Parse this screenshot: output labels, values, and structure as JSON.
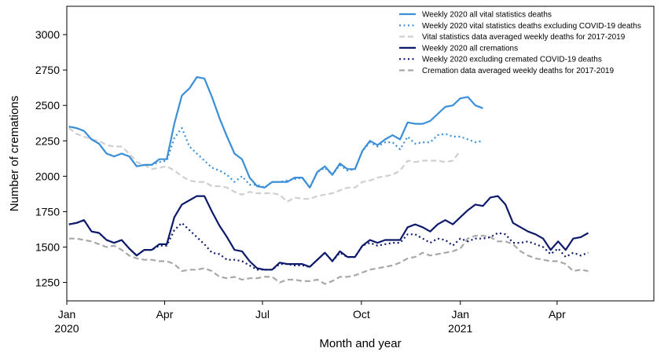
{
  "chart_data": {
    "type": "line",
    "title": "",
    "xlabel": "Month and year",
    "ylabel": "Number of cremations",
    "x_type": "date",
    "xlim": [
      "2020-01-01",
      "2021-06-30"
    ],
    "ylim": [
      1120,
      3200
    ],
    "grid": false,
    "legend_position": "top-right",
    "x_ticks": [
      {
        "date": "2020-01-01",
        "label": "Jan",
        "year": "2020"
      },
      {
        "date": "2020-04-01",
        "label": "Apr",
        "year": ""
      },
      {
        "date": "2020-07-01",
        "label": "Jul",
        "year": ""
      },
      {
        "date": "2020-10-01",
        "label": "Oct",
        "year": ""
      },
      {
        "date": "2021-01-01",
        "label": "Jan",
        "year": "2021"
      },
      {
        "date": "2021-04-01",
        "label": "Apr",
        "year": ""
      }
    ],
    "y_ticks": [
      1250,
      1500,
      1750,
      2000,
      2250,
      2500,
      2750,
      3000
    ],
    "series": [
      {
        "name": "Weekly 2020 all vital statistics deaths",
        "color": "#3a8fd8",
        "style": "solid",
        "x": [
          "2020-01-03",
          "2020-01-10",
          "2020-01-17",
          "2020-01-24",
          "2020-01-31",
          "2020-02-07",
          "2020-02-14",
          "2020-02-21",
          "2020-02-28",
          "2020-03-06",
          "2020-03-13",
          "2020-03-20",
          "2020-03-27",
          "2020-04-03",
          "2020-04-10",
          "2020-04-17",
          "2020-04-24",
          "2020-05-01",
          "2020-05-08",
          "2020-05-15",
          "2020-05-22",
          "2020-05-29",
          "2020-06-05",
          "2020-06-12",
          "2020-06-19",
          "2020-06-26",
          "2020-07-03",
          "2020-07-10",
          "2020-07-17",
          "2020-07-24",
          "2020-07-31",
          "2020-08-07",
          "2020-08-14",
          "2020-08-21",
          "2020-08-28",
          "2020-09-04",
          "2020-09-11",
          "2020-09-18",
          "2020-09-25",
          "2020-10-02",
          "2020-10-09",
          "2020-10-16",
          "2020-10-23",
          "2020-10-30",
          "2020-11-06",
          "2020-11-13",
          "2020-11-20",
          "2020-11-27",
          "2020-12-04",
          "2020-12-11",
          "2020-12-18",
          "2020-12-25",
          "2021-01-01",
          "2021-01-08",
          "2021-01-15",
          "2021-01-22",
          "2021-01-29"
        ],
        "y": [
          2350,
          2340,
          2320,
          2260,
          2230,
          2160,
          2140,
          2160,
          2140,
          2070,
          2080,
          2080,
          2120,
          2120,
          2370,
          2570,
          2620,
          2700,
          2690,
          2560,
          2410,
          2280,
          2160,
          2120,
          1990,
          1930,
          1920,
          1960,
          1960,
          1960,
          1990,
          1990,
          1920,
          2030,
          2070,
          2010,
          2090,
          2050,
          2050,
          2180,
          2250,
          2220,
          2260,
          2290,
          2260,
          2380,
          2370,
          2370,
          2390,
          2440,
          2490,
          2500,
          2550,
          2560,
          2500,
          2480,
          null
        ]
      },
      {
        "name": "Weekly 2020 vital statistics deaths excluding COVID-19 deaths",
        "color": "#3a8fd8",
        "style": "dotted",
        "x": [
          "2020-01-03",
          "2020-01-10",
          "2020-01-17",
          "2020-01-24",
          "2020-01-31",
          "2020-02-07",
          "2020-02-14",
          "2020-02-21",
          "2020-02-28",
          "2020-03-06",
          "2020-03-13",
          "2020-03-20",
          "2020-03-27",
          "2020-04-03",
          "2020-04-10",
          "2020-04-17",
          "2020-04-24",
          "2020-05-01",
          "2020-05-08",
          "2020-05-15",
          "2020-05-22",
          "2020-05-29",
          "2020-06-05",
          "2020-06-12",
          "2020-06-19",
          "2020-06-26",
          "2020-07-03",
          "2020-07-10",
          "2020-07-17",
          "2020-07-24",
          "2020-07-31",
          "2020-08-07",
          "2020-08-14",
          "2020-08-21",
          "2020-08-28",
          "2020-09-04",
          "2020-09-11",
          "2020-09-18",
          "2020-09-25",
          "2020-10-02",
          "2020-10-09",
          "2020-10-16",
          "2020-10-23",
          "2020-10-30",
          "2020-11-06",
          "2020-11-13",
          "2020-11-20",
          "2020-11-27",
          "2020-12-04",
          "2020-12-11",
          "2020-12-18",
          "2020-12-25",
          "2021-01-01",
          "2021-01-08",
          "2021-01-15",
          "2021-01-22",
          "2021-01-29"
        ],
        "y": [
          2350,
          2340,
          2320,
          2260,
          2230,
          2160,
          2140,
          2160,
          2140,
          2070,
          2080,
          2080,
          2100,
          2110,
          2270,
          2340,
          2210,
          2160,
          2110,
          2060,
          2040,
          2010,
          1960,
          2000,
          1940,
          1940,
          1920,
          1960,
          1960,
          1970,
          1980,
          1990,
          1920,
          2030,
          2060,
          2010,
          2080,
          2040,
          2050,
          2180,
          2240,
          2210,
          2240,
          2240,
          2190,
          2280,
          2230,
          2240,
          2240,
          2290,
          2300,
          2280,
          2280,
          2260,
          2240,
          2250,
          null
        ]
      },
      {
        "name": "Vital statistics data averaged weekly deaths for 2017-2019",
        "color": "#cfcfcf",
        "style": "dashed",
        "x": [
          "2020-01-03",
          "2020-01-10",
          "2020-01-17",
          "2020-01-24",
          "2020-01-31",
          "2020-02-07",
          "2020-02-14",
          "2020-02-21",
          "2020-02-28",
          "2020-03-06",
          "2020-03-13",
          "2020-03-20",
          "2020-03-27",
          "2020-04-03",
          "2020-04-10",
          "2020-04-17",
          "2020-04-24",
          "2020-05-01",
          "2020-05-08",
          "2020-05-15",
          "2020-05-22",
          "2020-05-29",
          "2020-06-05",
          "2020-06-12",
          "2020-06-19",
          "2020-06-26",
          "2020-07-03",
          "2020-07-10",
          "2020-07-17",
          "2020-07-24",
          "2020-07-31",
          "2020-08-07",
          "2020-08-14",
          "2020-08-21",
          "2020-08-28",
          "2020-09-04",
          "2020-09-11",
          "2020-09-18",
          "2020-09-25",
          "2020-10-02",
          "2020-10-09",
          "2020-10-16",
          "2020-10-23",
          "2020-10-30",
          "2020-11-06",
          "2020-11-13",
          "2020-11-20",
          "2020-11-27",
          "2020-12-04",
          "2020-12-11",
          "2020-12-18",
          "2020-12-25",
          "2021-01-01"
        ],
        "y": [
          2340,
          2300,
          2280,
          2260,
          2250,
          2220,
          2210,
          2210,
          2160,
          2100,
          2080,
          2050,
          2060,
          2070,
          2040,
          2000,
          1970,
          1960,
          1960,
          1930,
          1930,
          1920,
          1890,
          1870,
          1890,
          1880,
          1880,
          1880,
          1870,
          1820,
          1850,
          1840,
          1840,
          1860,
          1870,
          1880,
          1900,
          1920,
          1920,
          1960,
          1970,
          1990,
          2000,
          2010,
          2040,
          2110,
          2100,
          2110,
          2110,
          2110,
          2100,
          2110,
          2180
        ]
      },
      {
        "name": "Weekly 2020 all cremations",
        "color": "#0d1a6b",
        "style": "solid",
        "x": [
          "2020-01-03",
          "2020-01-10",
          "2020-01-17",
          "2020-01-24",
          "2020-01-31",
          "2020-02-07",
          "2020-02-14",
          "2020-02-21",
          "2020-02-28",
          "2020-03-06",
          "2020-03-13",
          "2020-03-20",
          "2020-03-27",
          "2020-04-03",
          "2020-04-10",
          "2020-04-17",
          "2020-04-24",
          "2020-05-01",
          "2020-05-08",
          "2020-05-15",
          "2020-05-22",
          "2020-05-29",
          "2020-06-05",
          "2020-06-12",
          "2020-06-19",
          "2020-06-26",
          "2020-07-03",
          "2020-07-10",
          "2020-07-17",
          "2020-07-24",
          "2020-07-31",
          "2020-08-07",
          "2020-08-14",
          "2020-08-21",
          "2020-08-28",
          "2020-09-04",
          "2020-09-11",
          "2020-09-18",
          "2020-09-25",
          "2020-10-02",
          "2020-10-09",
          "2020-10-16",
          "2020-10-23",
          "2020-10-30",
          "2020-11-06",
          "2020-11-13",
          "2020-11-20",
          "2020-11-27",
          "2020-12-04",
          "2020-12-11",
          "2020-12-18",
          "2020-12-25",
          "2021-01-01",
          "2021-01-08",
          "2021-01-15",
          "2021-01-22",
          "2021-01-29",
          "2021-02-05",
          "2021-02-12",
          "2021-02-19",
          "2021-02-26",
          "2021-03-05",
          "2021-03-12",
          "2021-03-19",
          "2021-03-26",
          "2021-04-02",
          "2021-04-09",
          "2021-04-16",
          "2021-04-23",
          "2021-04-30"
        ],
        "y": [
          1660,
          1670,
          1690,
          1610,
          1600,
          1550,
          1530,
          1550,
          1490,
          1440,
          1480,
          1480,
          1520,
          1520,
          1710,
          1800,
          1830,
          1860,
          1860,
          1750,
          1650,
          1570,
          1480,
          1470,
          1400,
          1350,
          1340,
          1340,
          1390,
          1380,
          1380,
          1380,
          1360,
          1410,
          1460,
          1400,
          1470,
          1430,
          1430,
          1510,
          1550,
          1530,
          1550,
          1550,
          1550,
          1640,
          1660,
          1640,
          1610,
          1660,
          1690,
          1660,
          1710,
          1760,
          1800,
          1790,
          1850,
          1860,
          1800,
          1670,
          1640,
          1610,
          1590,
          1560,
          1480,
          1540,
          1480,
          1560,
          1570,
          1600
        ]
      },
      {
        "name": "Weekly 2020 excluding cremated COVID-19 deaths",
        "color": "#0d1a6b",
        "style": "dotted",
        "x": [
          "2020-01-03",
          "2020-01-10",
          "2020-01-17",
          "2020-01-24",
          "2020-01-31",
          "2020-02-07",
          "2020-02-14",
          "2020-02-21",
          "2020-02-28",
          "2020-03-06",
          "2020-03-13",
          "2020-03-20",
          "2020-03-27",
          "2020-04-03",
          "2020-04-10",
          "2020-04-17",
          "2020-04-24",
          "2020-05-01",
          "2020-05-08",
          "2020-05-15",
          "2020-05-22",
          "2020-05-29",
          "2020-06-05",
          "2020-06-12",
          "2020-06-19",
          "2020-06-26",
          "2020-07-03",
          "2020-07-10",
          "2020-07-17",
          "2020-07-24",
          "2020-07-31",
          "2020-08-07",
          "2020-08-14",
          "2020-08-21",
          "2020-08-28",
          "2020-09-04",
          "2020-09-11",
          "2020-09-18",
          "2020-09-25",
          "2020-10-02",
          "2020-10-09",
          "2020-10-16",
          "2020-10-23",
          "2020-10-30",
          "2020-11-06",
          "2020-11-13",
          "2020-11-20",
          "2020-11-27",
          "2020-12-04",
          "2020-12-11",
          "2020-12-18",
          "2020-12-25",
          "2021-01-01",
          "2021-01-08",
          "2021-01-15",
          "2021-01-22",
          "2021-01-29",
          "2021-02-05",
          "2021-02-12",
          "2021-02-19",
          "2021-02-26",
          "2021-03-05",
          "2021-03-12",
          "2021-03-19",
          "2021-03-26",
          "2021-04-02",
          "2021-04-09",
          "2021-04-16",
          "2021-04-23",
          "2021-04-30"
        ],
        "y": [
          1660,
          1670,
          1690,
          1610,
          1600,
          1550,
          1530,
          1550,
          1490,
          1440,
          1480,
          1480,
          1510,
          1510,
          1620,
          1670,
          1620,
          1570,
          1520,
          1460,
          1450,
          1410,
          1410,
          1400,
          1370,
          1340,
          1340,
          1340,
          1380,
          1380,
          1370,
          1370,
          1360,
          1410,
          1460,
          1400,
          1460,
          1430,
          1430,
          1510,
          1530,
          1510,
          1520,
          1530,
          1530,
          1590,
          1590,
          1560,
          1530,
          1560,
          1550,
          1510,
          1560,
          1540,
          1560,
          1560,
          1570,
          1600,
          1590,
          1530,
          1530,
          1540,
          1520,
          1500,
          1450,
          1490,
          1430,
          1460,
          1440,
          1460
        ]
      },
      {
        "name": "Cremation data averaged weekly deaths for 2017-2019",
        "color": "#a8a8a8",
        "style": "dashed",
        "x": [
          "2020-01-03",
          "2020-01-10",
          "2020-01-17",
          "2020-01-24",
          "2020-01-31",
          "2020-02-07",
          "2020-02-14",
          "2020-02-21",
          "2020-02-28",
          "2020-03-06",
          "2020-03-13",
          "2020-03-20",
          "2020-03-27",
          "2020-04-03",
          "2020-04-10",
          "2020-04-17",
          "2020-04-24",
          "2020-05-01",
          "2020-05-08",
          "2020-05-15",
          "2020-05-22",
          "2020-05-29",
          "2020-06-05",
          "2020-06-12",
          "2020-06-19",
          "2020-06-26",
          "2020-07-03",
          "2020-07-10",
          "2020-07-17",
          "2020-07-24",
          "2020-07-31",
          "2020-08-07",
          "2020-08-14",
          "2020-08-21",
          "2020-08-28",
          "2020-09-04",
          "2020-09-11",
          "2020-09-18",
          "2020-09-25",
          "2020-10-02",
          "2020-10-09",
          "2020-10-16",
          "2020-10-23",
          "2020-10-30",
          "2020-11-06",
          "2020-11-13",
          "2020-11-20",
          "2020-11-27",
          "2020-12-04",
          "2020-12-11",
          "2020-12-18",
          "2020-12-25",
          "2021-01-01",
          "2021-01-08",
          "2021-01-15",
          "2021-01-22",
          "2021-01-29",
          "2021-02-05",
          "2021-02-12",
          "2021-02-19",
          "2021-02-26",
          "2021-03-05",
          "2021-03-12",
          "2021-03-19",
          "2021-03-26",
          "2021-04-02",
          "2021-04-09",
          "2021-04-16",
          "2021-04-23",
          "2021-04-30"
        ],
        "y": [
          1560,
          1560,
          1550,
          1540,
          1520,
          1500,
          1510,
          1480,
          1440,
          1420,
          1410,
          1410,
          1400,
          1400,
          1380,
          1330,
          1340,
          1340,
          1350,
          1330,
          1290,
          1280,
          1290,
          1270,
          1280,
          1280,
          1290,
          1290,
          1250,
          1270,
          1270,
          1260,
          1260,
          1270,
          1240,
          1260,
          1290,
          1290,
          1300,
          1320,
          1340,
          1350,
          1360,
          1370,
          1390,
          1420,
          1430,
          1460,
          1440,
          1450,
          1460,
          1470,
          1490,
          1560,
          1580,
          1580,
          1570,
          1540,
          1540,
          1520,
          1470,
          1440,
          1420,
          1410,
          1400,
          1400,
          1380,
          1330,
          1340,
          1330
        ]
      }
    ]
  }
}
